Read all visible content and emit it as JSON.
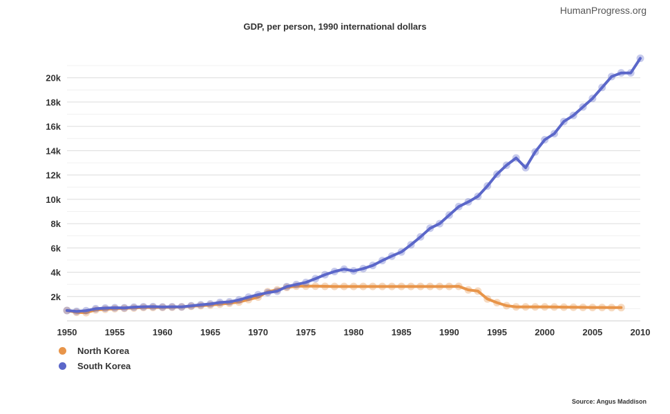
{
  "brand": "HumanProgress.org",
  "source": "Source: Angus Maddison",
  "chart_data": {
    "type": "line",
    "title": "GDP, per person, 1990 international dollars",
    "xlabel": "",
    "ylabel": "",
    "xlim": [
      1950,
      2010
    ],
    "ylim": [
      0,
      21800
    ],
    "x_ticks": [
      1950,
      1955,
      1960,
      1965,
      1970,
      1975,
      1980,
      1985,
      1990,
      1995,
      2000,
      2005,
      2010
    ],
    "y_ticks": [
      2000,
      4000,
      6000,
      8000,
      10000,
      12000,
      14000,
      16000,
      18000,
      20000
    ],
    "y_tick_labels": [
      "2k",
      "4k",
      "6k",
      "8k",
      "10k",
      "12k",
      "14k",
      "16k",
      "18k",
      "20k"
    ],
    "grid": true,
    "legend_position": "bottom-left",
    "series": [
      {
        "name": "North Korea",
        "color": "#e8954a",
        "x": [
          1950,
          1951,
          1952,
          1953,
          1954,
          1955,
          1956,
          1957,
          1958,
          1959,
          1960,
          1961,
          1962,
          1963,
          1964,
          1965,
          1966,
          1967,
          1968,
          1969,
          1970,
          1971,
          1972,
          1973,
          1974,
          1975,
          1976,
          1977,
          1978,
          1979,
          1980,
          1981,
          1982,
          1983,
          1984,
          1985,
          1986,
          1987,
          1988,
          1989,
          1990,
          1991,
          1992,
          1993,
          1994,
          1995,
          1996,
          1997,
          1998,
          1999,
          2000,
          2001,
          2002,
          2003,
          2004,
          2005,
          2006,
          2007,
          2008
        ],
        "values": [
          854,
          700,
          675,
          900,
          950,
          1000,
          1030,
          1060,
          1100,
          1100,
          1105,
          1120,
          1140,
          1200,
          1250,
          1300,
          1380,
          1450,
          1550,
          1750,
          1950,
          2400,
          2550,
          2750,
          2850,
          2850,
          2850,
          2840,
          2830,
          2830,
          2830,
          2830,
          2830,
          2830,
          2830,
          2830,
          2830,
          2830,
          2830,
          2830,
          2830,
          2840,
          2550,
          2450,
          1800,
          1500,
          1250,
          1150,
          1150,
          1150,
          1150,
          1140,
          1130,
          1120,
          1110,
          1100,
          1100,
          1090,
          1090
        ]
      },
      {
        "name": "South Korea",
        "color": "#5b67c9",
        "x": [
          1950,
          1951,
          1952,
          1953,
          1954,
          1955,
          1956,
          1957,
          1958,
          1959,
          1960,
          1961,
          1962,
          1963,
          1964,
          1965,
          1966,
          1967,
          1968,
          1969,
          1970,
          1971,
          1972,
          1973,
          1974,
          1975,
          1976,
          1977,
          1978,
          1979,
          1980,
          1981,
          1982,
          1983,
          1984,
          1985,
          1986,
          1987,
          1988,
          1989,
          1990,
          1991,
          1992,
          1993,
          1994,
          1995,
          1996,
          1997,
          1998,
          1999,
          2000,
          2001,
          2002,
          2003,
          2004,
          2005,
          2006,
          2007,
          2008,
          2009,
          2010
        ],
        "values": [
          854,
          780,
          840,
          1000,
          1050,
          1080,
          1070,
          1130,
          1160,
          1170,
          1140,
          1160,
          1150,
          1240,
          1320,
          1390,
          1510,
          1560,
          1720,
          1950,
          2150,
          2320,
          2440,
          2820,
          2990,
          3160,
          3470,
          3800,
          4060,
          4250,
          4110,
          4300,
          4560,
          4960,
          5330,
          5670,
          6260,
          6910,
          7620,
          8000,
          8700,
          9400,
          9790,
          10240,
          11100,
          12070,
          12800,
          13400,
          12600,
          13900,
          14900,
          15400,
          16400,
          16900,
          17600,
          18300,
          19200,
          20100,
          20400,
          20400,
          21600
        ]
      }
    ]
  }
}
